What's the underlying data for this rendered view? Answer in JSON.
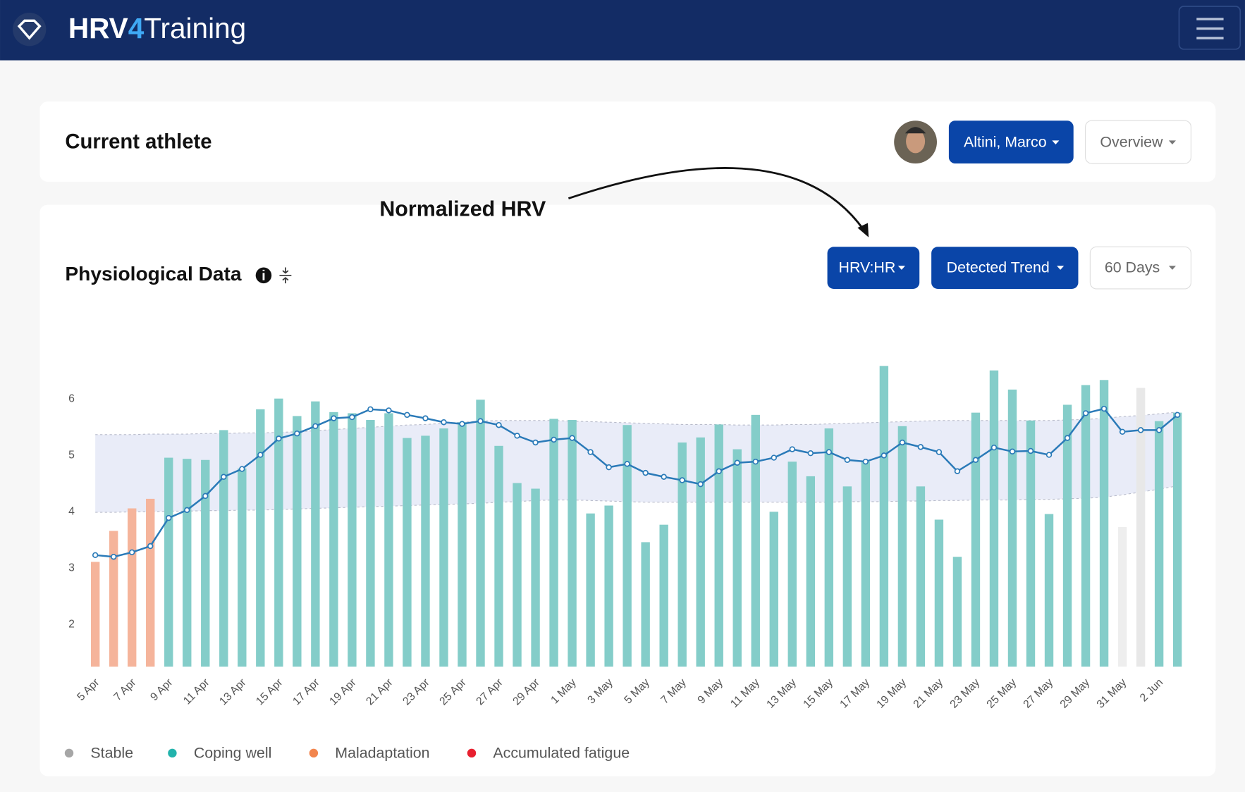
{
  "header": {
    "brand_parts": [
      "HRV",
      "4",
      "Training"
    ]
  },
  "athlete": {
    "title": "Current athlete",
    "athlete_button": "Altini, Marco",
    "view_button": "Overview"
  },
  "annotation": "Normalized HRV",
  "panel": {
    "title": "Physiological Data",
    "buttons": [
      "HRV:HR",
      "Detected Trend",
      "60 Days"
    ]
  },
  "chart_data": {
    "type": "bar",
    "categories": [
      "5 Apr",
      null,
      "7 Apr",
      null,
      "9 Apr",
      null,
      "11 Apr",
      null,
      "13 Apr",
      null,
      "15 Apr",
      null,
      "17 Apr",
      null,
      "19 Apr",
      null,
      "21 Apr",
      null,
      "23 Apr",
      null,
      "25 Apr",
      null,
      "27 Apr",
      null,
      "29 Apr",
      null,
      "1 May",
      null,
      "3 May",
      null,
      "5 May",
      null,
      "7 May",
      null,
      "9 May",
      null,
      "11 May",
      null,
      "13 May",
      null,
      "15 May",
      null,
      "17 May",
      null,
      "19 May",
      null,
      "21 May",
      null,
      "23 May",
      null,
      "25 May",
      null,
      "27 May",
      null,
      "29 May",
      null,
      "31 May",
      null,
      "2 Jun",
      null
    ],
    "values": [
      3.11,
      3.66,
      4.06,
      4.23,
      4.96,
      4.94,
      4.92,
      5.45,
      4.77,
      5.82,
      6.01,
      5.7,
      5.96,
      5.77,
      5.75,
      5.63,
      5.75,
      5.31,
      5.35,
      5.48,
      5.59,
      5.99,
      5.17,
      4.51,
      4.41,
      5.65,
      5.63,
      3.97,
      4.11,
      5.54,
      3.46,
      3.77,
      5.23,
      5.32,
      5.55,
      5.11,
      5.72,
      4.0,
      4.89,
      4.63,
      5.48,
      4.45,
      4.89,
      6.59,
      5.52,
      4.45,
      3.86,
      3.2,
      5.76,
      6.51,
      6.17,
      5.62,
      3.96,
      5.9,
      6.25,
      6.34,
      3.73,
      6.2,
      5.61,
      5.76
    ],
    "bar_colors": [
      "#f5b49b",
      "#f5b49b",
      "#f5b49b",
      "#f5b49b",
      "#84cdc9",
      "#84cdc9",
      "#84cdc9",
      "#84cdc9",
      "#84cdc9",
      "#84cdc9",
      "#84cdc9",
      "#84cdc9",
      "#84cdc9",
      "#84cdc9",
      "#84cdc9",
      "#84cdc9",
      "#84cdc9",
      "#84cdc9",
      "#84cdc9",
      "#84cdc9",
      "#84cdc9",
      "#84cdc9",
      "#84cdc9",
      "#84cdc9",
      "#84cdc9",
      "#84cdc9",
      "#84cdc9",
      "#84cdc9",
      "#84cdc9",
      "#84cdc9",
      "#84cdc9",
      "#84cdc9",
      "#84cdc9",
      "#84cdc9",
      "#84cdc9",
      "#84cdc9",
      "#84cdc9",
      "#84cdc9",
      "#84cdc9",
      "#84cdc9",
      "#84cdc9",
      "#84cdc9",
      "#84cdc9",
      "#84cdc9",
      "#84cdc9",
      "#84cdc9",
      "#84cdc9",
      "#84cdc9",
      "#84cdc9",
      "#84cdc9",
      "#84cdc9",
      "#84cdc9",
      "#84cdc9",
      "#84cdc9",
      "#84cdc9",
      "#84cdc9",
      "#eeeeee",
      "#e8e8e8",
      "#84cdc9",
      "#84cdc9"
    ],
    "line": {
      "color": "#2a7ab8",
      "values": [
        3.23,
        3.2,
        3.28,
        3.39,
        3.89,
        4.03,
        4.28,
        4.62,
        4.76,
        5.01,
        5.3,
        5.39,
        5.52,
        5.66,
        5.68,
        5.82,
        5.8,
        5.72,
        5.66,
        5.59,
        5.56,
        5.61,
        5.54,
        5.35,
        5.23,
        5.28,
        5.31,
        5.06,
        4.79,
        4.85,
        4.69,
        4.62,
        4.56,
        4.49,
        4.72,
        4.87,
        4.89,
        4.96,
        5.11,
        5.04,
        5.06,
        4.92,
        4.89,
        5.0,
        5.23,
        5.15,
        5.06,
        4.72,
        4.92,
        5.14,
        5.07,
        5.08,
        5.01,
        5.31,
        5.75,
        5.83,
        5.42,
        5.45,
        5.45,
        5.72
      ]
    },
    "band": {
      "color": "#e9ecf8",
      "upper": [
        5.37,
        5.37,
        5.37,
        5.38,
        5.38,
        5.38,
        5.39,
        5.39,
        5.4,
        5.4,
        5.41,
        5.42,
        5.44,
        5.46,
        5.48,
        5.5,
        5.52,
        5.54,
        5.55,
        5.57,
        5.59,
        5.61,
        5.62,
        5.62,
        5.62,
        5.62,
        5.61,
        5.6,
        5.59,
        5.58,
        5.57,
        5.56,
        5.55,
        5.55,
        5.55,
        5.54,
        5.54,
        5.54,
        5.55,
        5.55,
        5.56,
        5.57,
        5.58,
        5.59,
        5.6,
        5.61,
        5.62,
        5.62,
        5.62,
        5.62,
        5.62,
        5.62,
        5.62,
        5.63,
        5.64,
        5.66,
        5.69,
        5.71,
        5.74,
        5.77
      ],
      "lower": [
        3.99,
        3.99,
        4.0,
        4.0,
        4.01,
        4.01,
        4.02,
        4.02,
        4.03,
        4.03,
        4.04,
        4.05,
        4.06,
        4.07,
        4.08,
        4.09,
        4.1,
        4.11,
        4.12,
        4.13,
        4.14,
        4.15,
        4.17,
        4.18,
        4.2,
        4.21,
        4.21,
        4.2,
        4.19,
        4.18,
        4.17,
        4.17,
        4.17,
        4.17,
        4.17,
        4.17,
        4.17,
        4.17,
        4.17,
        4.17,
        4.17,
        4.18,
        4.18,
        4.18,
        4.19,
        4.19,
        4.2,
        4.2,
        4.21,
        4.21,
        4.21,
        4.22,
        4.22,
        4.23,
        4.24,
        4.26,
        4.3,
        4.35,
        4.4,
        4.46
      ]
    },
    "ylim": [
      1.25,
      7
    ],
    "yticks": [
      2,
      3,
      4,
      5,
      6
    ],
    "legend": [
      {
        "name": "Stable",
        "color": "#a6a6a6"
      },
      {
        "name": "Coping well",
        "color": "#22b3ac"
      },
      {
        "name": "Maladaptation",
        "color": "#f2854d"
      },
      {
        "name": "Accumulated fatigue",
        "color": "#e8202f"
      }
    ]
  }
}
